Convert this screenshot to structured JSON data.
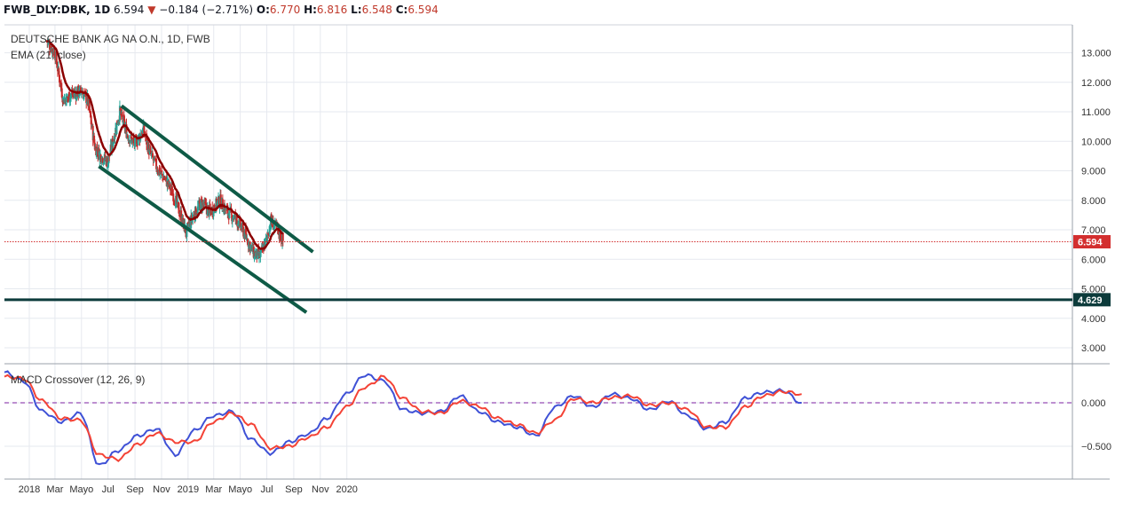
{
  "header": {
    "symbol": "FWB_DLY:DBK, 1D",
    "last": "6.594",
    "change_arrow": "▼",
    "change": "−0.184 (−2.71%)",
    "o_label": "O:",
    "o_value": "6.770",
    "h_label": "H:",
    "h_value": "6.816",
    "l_label": "L:",
    "l_value": "6.548",
    "c_label": "C:",
    "c_value": "6.594"
  },
  "main_pane": {
    "title": "DEUTSCHE BANK AG NA O.N., 1D, FWB",
    "indicator": "EMA (21, close)"
  },
  "macd_pane": {
    "title": "MACD Crossover (12, 26, 9)"
  },
  "x_axis": {
    "labels": [
      "2018",
      "Mar",
      "Mayo",
      "Jul",
      "Sep",
      "Nov",
      "2019",
      "Mar",
      "Mayo",
      "Jul",
      "Sep",
      "Nov",
      "2020"
    ]
  },
  "colors": {
    "up": "#26a69a",
    "down": "#c62828",
    "ema": "#8b0000",
    "channel": "#0e5a46",
    "support": "#0c3b3b",
    "macd": "#3f51d6",
    "signal": "#f44336",
    "price_line": "#d32f2f",
    "grid": "#e6e9ef"
  },
  "chart_data": [
    {
      "type": "candlestick",
      "title": "DEUTSCHE BANK AG NA O.N., 1D, FWB",
      "x_axis": [
        "2018",
        "Mar",
        "Mayo",
        "Jul",
        "Sep",
        "Nov",
        "2019",
        "Mar",
        "Mayo",
        "Jul",
        "Sep",
        "Nov",
        "2020"
      ],
      "y_ticks": [
        "3.000",
        "4.000",
        "5.000",
        "6.000",
        "7.000",
        "8.000",
        "9.000",
        "10.000",
        "11.000",
        "12.000",
        "13.000"
      ],
      "ylim": [
        2.5,
        13.9
      ],
      "price_path": [
        [
          "2018-02-10",
          13.4
        ],
        [
          "2018-03-01",
          13.0
        ],
        [
          "2018-03-20",
          11.4
        ],
        [
          "2018-04-10",
          11.6
        ],
        [
          "2018-05-01",
          11.7
        ],
        [
          "2018-05-15",
          11.4
        ],
        [
          "2018-06-01",
          9.8
        ],
        [
          "2018-06-15",
          9.5
        ],
        [
          "2018-07-01",
          9.3
        ],
        [
          "2018-07-15",
          10.2
        ],
        [
          "2018-07-28",
          11.0
        ],
        [
          "2018-08-15",
          10.2
        ],
        [
          "2018-09-01",
          9.9
        ],
        [
          "2018-09-20",
          10.4
        ],
        [
          "2018-10-05",
          9.6
        ],
        [
          "2018-10-25",
          9.0
        ],
        [
          "2018-11-15",
          8.6
        ],
        [
          "2018-12-01",
          8.1
        ],
        [
          "2018-12-28",
          6.9
        ],
        [
          "2019-01-10",
          7.4
        ],
        [
          "2019-02-01",
          7.9
        ],
        [
          "2019-02-20",
          7.6
        ],
        [
          "2019-03-15",
          8.0
        ],
        [
          "2019-04-01",
          7.6
        ],
        [
          "2019-04-20",
          7.4
        ],
        [
          "2019-05-10",
          6.9
        ],
        [
          "2019-06-01",
          6.2
        ],
        [
          "2019-06-15",
          6.1
        ],
        [
          "2019-07-01",
          6.7
        ],
        [
          "2019-07-10",
          7.3
        ],
        [
          "2019-07-25",
          7.0
        ],
        [
          "2019-08-08",
          6.594
        ]
      ],
      "ema_name": "EMA (21, close)",
      "last_price": 6.594,
      "price_label": "6.594",
      "support_level": 4.629,
      "support_label": "4.629",
      "channel_upper": [
        [
          "2018-08-01",
          11.2
        ],
        [
          "2019-10-15",
          6.25
        ]
      ],
      "channel_lower": [
        [
          "2018-06-10",
          9.15
        ],
        [
          "2019-09-30",
          4.2
        ]
      ],
      "ohlc_last": {
        "open": 6.77,
        "high": 6.816,
        "low": 6.548,
        "close": 6.594
      }
    },
    {
      "type": "line",
      "title": "MACD Crossover (12, 26, 9)",
      "y_ticks": [
        "−0.500",
        "0.000"
      ],
      "ylim": [
        -0.78,
        0.42
      ],
      "series": [
        {
          "values": [
            0.35,
            0.25,
            -0.1,
            -0.22,
            -0.12,
            -0.72,
            -0.55,
            -0.38,
            -0.3,
            -0.6,
            -0.32,
            -0.15,
            -0.1,
            -0.42,
            -0.58,
            -0.45,
            -0.36,
            -0.18,
            0.1,
            0.32,
            0.25,
            -0.08,
            -0.12,
            -0.1,
            0.08,
            -0.1,
            -0.22,
            -0.28,
            -0.38,
            -0.05,
            0.08,
            -0.05,
            0.1,
            0.05,
            -0.08,
            0.02,
            -0.15,
            -0.3,
            -0.22,
            0.05,
            0.12,
            0.14,
            0.0
          ]
        },
        {
          "values": [
            0.3,
            0.28,
            0.02,
            -0.18,
            -0.2,
            -0.6,
            -0.65,
            -0.48,
            -0.35,
            -0.45,
            -0.45,
            -0.22,
            -0.12,
            -0.25,
            -0.52,
            -0.5,
            -0.4,
            -0.28,
            -0.05,
            0.18,
            0.3,
            0.05,
            -0.1,
            -0.12,
            0.02,
            -0.04,
            -0.18,
            -0.25,
            -0.35,
            -0.2,
            0.05,
            0.0,
            0.06,
            0.08,
            -0.03,
            0.0,
            -0.08,
            -0.28,
            -0.28,
            -0.05,
            0.08,
            0.13,
            0.1
          ]
        }
      ],
      "zero_line": 0.0
    }
  ]
}
